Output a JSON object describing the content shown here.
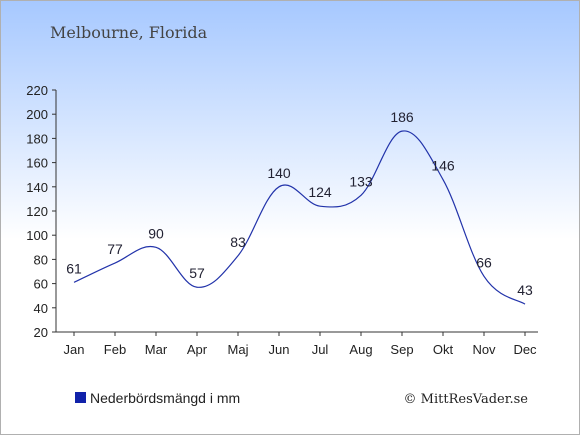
{
  "chart_data": {
    "type": "line",
    "title": "Melbourne, Florida",
    "categories": [
      "Jan",
      "Feb",
      "Mar",
      "Apr",
      "Maj",
      "Jun",
      "Jul",
      "Aug",
      "Sep",
      "Okt",
      "Nov",
      "Dec"
    ],
    "series": [
      {
        "name": "Nederbördsmängd i mm",
        "values": [
          61,
          77,
          90,
          57,
          83,
          140,
          124,
          133,
          186,
          146,
          66,
          43
        ],
        "color": "#2233aa"
      }
    ],
    "ylim": [
      20,
      220
    ],
    "yticks": [
      20,
      40,
      60,
      80,
      100,
      120,
      140,
      160,
      180,
      200,
      220
    ],
    "grid": false,
    "legend": "bottom-left",
    "xlabel": "",
    "ylabel": ""
  },
  "legend": {
    "label": "Nederbördsmängd i mm",
    "color": "#1122aa"
  },
  "credit": "© MittResVader.se",
  "colors": {
    "background_top": "#a6c8ff",
    "background_bottom": "#ffffff",
    "line": "#2233aa",
    "text": "#222222"
  }
}
